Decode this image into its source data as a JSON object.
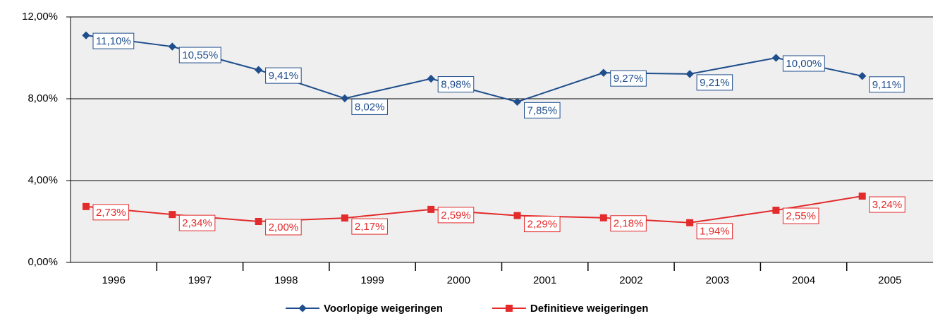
{
  "chart_data": {
    "type": "line",
    "categories": [
      "1996",
      "1997",
      "1998",
      "1999",
      "2000",
      "2001",
      "2002",
      "2003",
      "2004",
      "2005"
    ],
    "series": [
      {
        "name": "Voorlopige weigeringen",
        "color": "#1f4e8c",
        "marker": "diamond",
        "values": [
          11.1,
          10.55,
          9.41,
          8.02,
          8.98,
          7.85,
          9.27,
          9.21,
          10.0,
          9.11
        ],
        "value_labels": [
          "11,10%",
          "10,55%",
          "9,41%",
          "8,02%",
          "8,98%",
          "7,85%",
          "9,27%",
          "9,21%",
          "10,00%",
          "9,11%"
        ]
      },
      {
        "name": "Definitieve weigeringen",
        "color": "#e32b2b",
        "marker": "square",
        "values": [
          2.73,
          2.34,
          2.0,
          2.17,
          2.59,
          2.29,
          2.18,
          1.94,
          2.55,
          3.24
        ],
        "value_labels": [
          "2,73%",
          "2,34%",
          "2,00%",
          "2,17%",
          "2,59%",
          "2,29%",
          "2,18%",
          "1,94%",
          "2,55%",
          "3,24%"
        ]
      }
    ],
    "ylim": [
      0,
      12
    ],
    "yticks": [
      {
        "value": 0,
        "label": "0,00%"
      },
      {
        "value": 4,
        "label": "4,00%"
      },
      {
        "value": 8,
        "label": "8,00%"
      },
      {
        "value": 12,
        "label": "12,00%"
      }
    ],
    "grid": true,
    "legend": "bottom"
  }
}
